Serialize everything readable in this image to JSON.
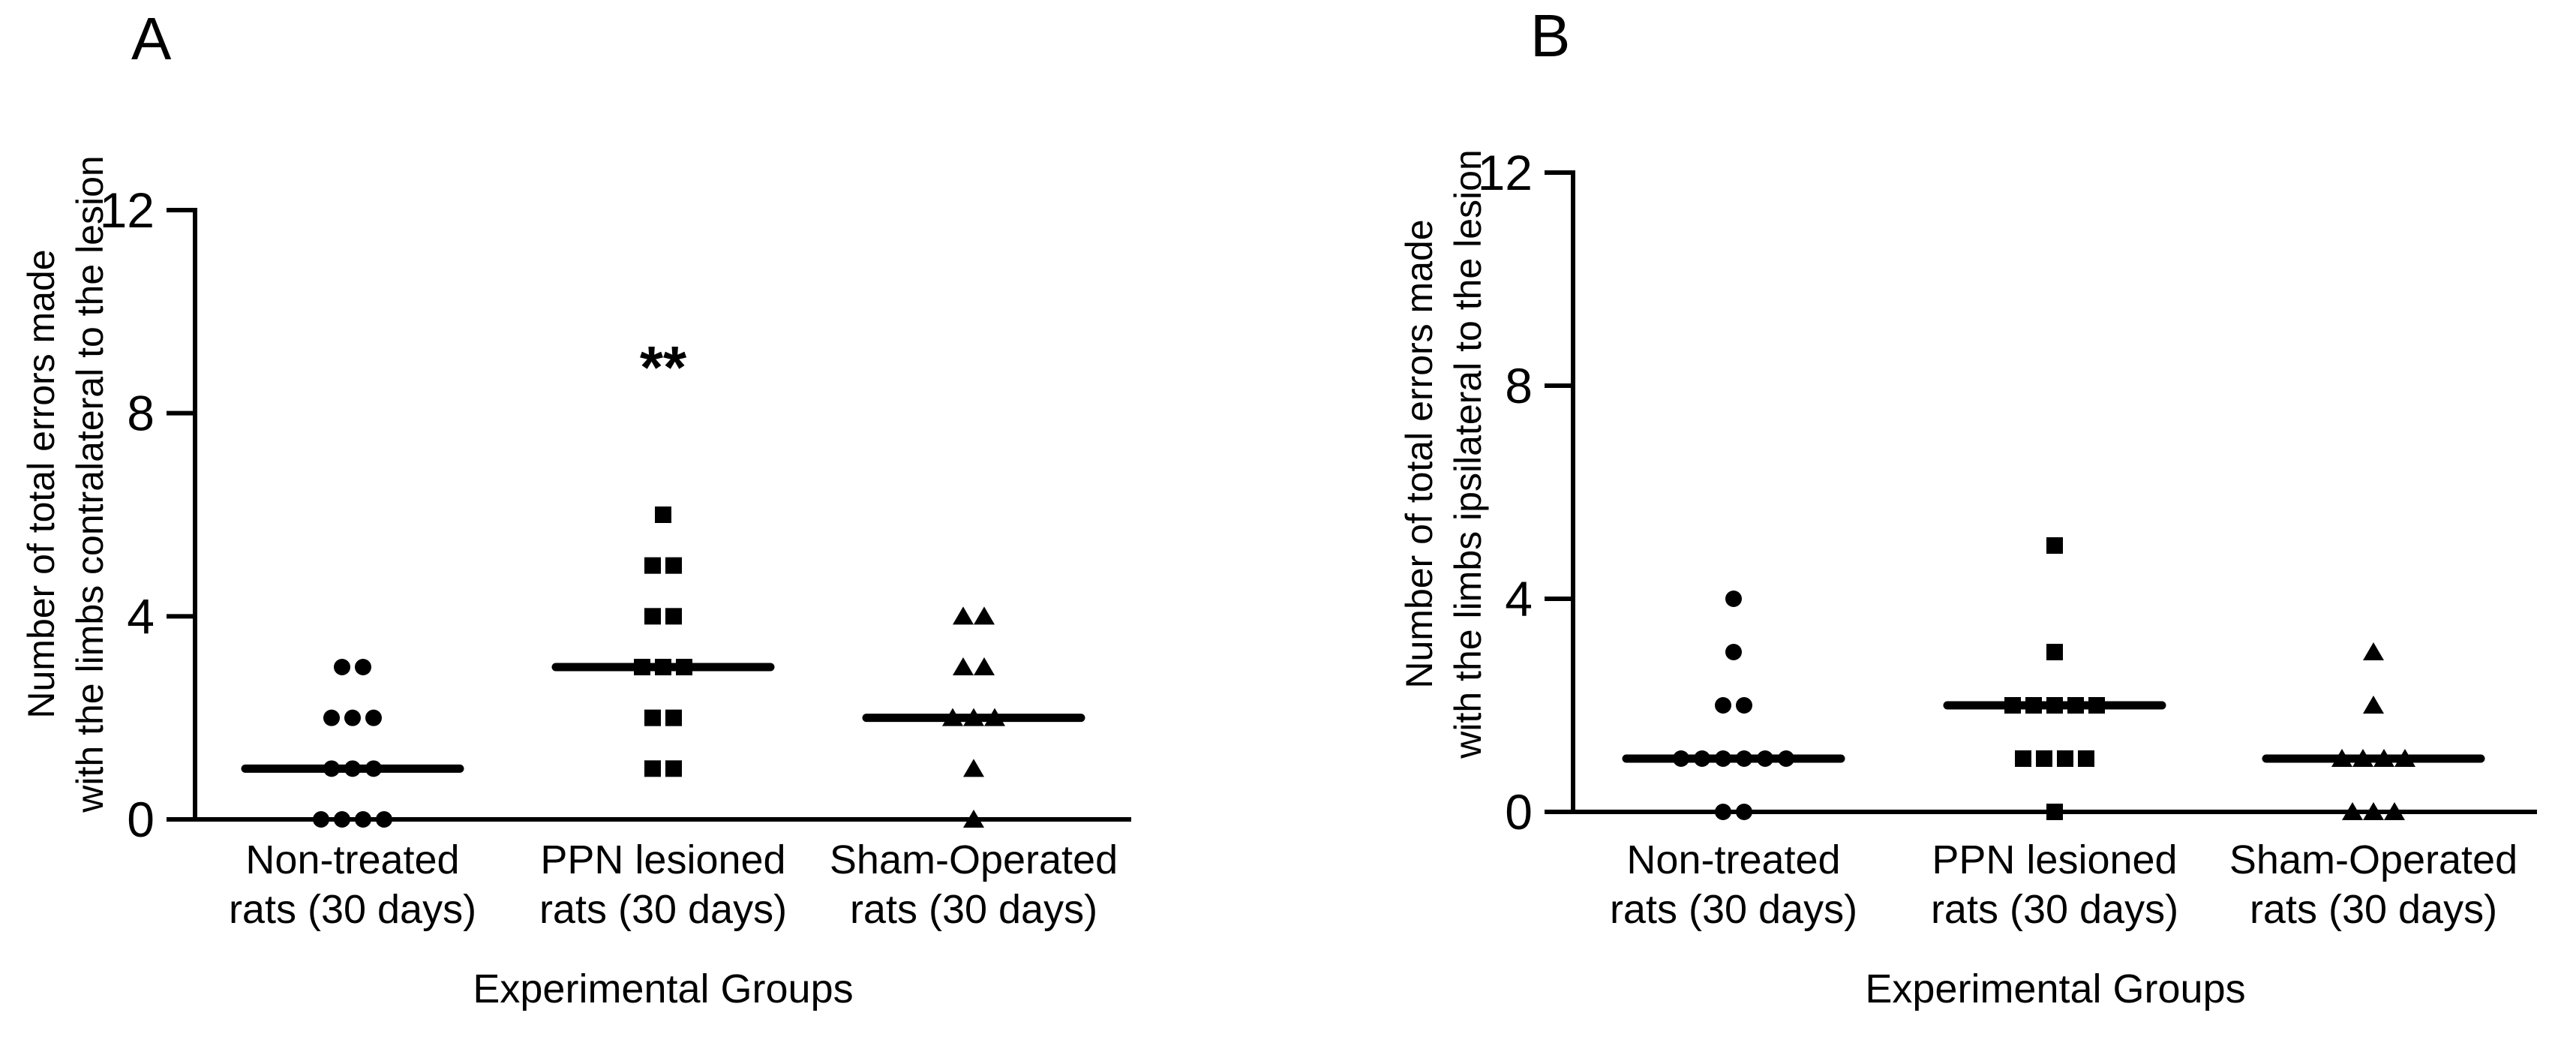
{
  "figure": {
    "background_color": "#ffffff",
    "foreground_color": "#000000"
  },
  "chart_data": [
    {
      "type": "scatter",
      "panel_label": "A",
      "ylabel_lines": [
        "Number of total errors made",
        "with the limbs contralateral to the lesion"
      ],
      "xlabel": "Experimental Groups",
      "ylim": [
        0,
        12
      ],
      "yticks": [
        0,
        4,
        8,
        12
      ],
      "grid": false,
      "marker_color": "#000000",
      "groups": [
        {
          "label_lines": [
            "Non-treated",
            "rats (30 days)"
          ],
          "marker": "circle",
          "values": [
            3,
            3,
            2,
            2,
            2,
            1,
            1,
            1,
            0,
            0,
            0,
            0
          ],
          "median": 1,
          "significance": ""
        },
        {
          "label_lines": [
            "PPN lesioned",
            "rats (30 days)"
          ],
          "marker": "square",
          "values": [
            6,
            5,
            5,
            4,
            4,
            3,
            3,
            3,
            2,
            2,
            1,
            1
          ],
          "median": 3,
          "significance": "**"
        },
        {
          "label_lines": [
            "Sham-Operated",
            "rats (30 days)"
          ],
          "marker": "triangle",
          "values": [
            4,
            4,
            3,
            3,
            2,
            2,
            2,
            1,
            0
          ],
          "median": 2,
          "significance": ""
        }
      ]
    },
    {
      "type": "scatter",
      "panel_label": "B",
      "ylabel_lines": [
        "Number of total errors made",
        "with the limbs ipsilateral to the lesion"
      ],
      "xlabel": "Experimental Groups",
      "ylim": [
        0,
        12
      ],
      "yticks": [
        0,
        4,
        8,
        12
      ],
      "grid": false,
      "marker_color": "#000000",
      "groups": [
        {
          "label_lines": [
            "Non-treated",
            "rats (30 days)"
          ],
          "marker": "circle",
          "values": [
            4,
            3,
            2,
            2,
            1,
            1,
            1,
            1,
            1,
            1,
            0,
            0
          ],
          "median": 1,
          "significance": ""
        },
        {
          "label_lines": [
            "PPN lesioned",
            "rats (30 days)"
          ],
          "marker": "square",
          "values": [
            5,
            3,
            2,
            2,
            2,
            2,
            2,
            1,
            1,
            1,
            1,
            0
          ],
          "median": 2,
          "significance": ""
        },
        {
          "label_lines": [
            "Sham-Operated",
            "rats (30 days)"
          ],
          "marker": "triangle",
          "values": [
            3,
            2,
            1,
            1,
            1,
            1,
            0,
            0,
            0
          ],
          "median": 1,
          "significance": ""
        }
      ]
    }
  ]
}
